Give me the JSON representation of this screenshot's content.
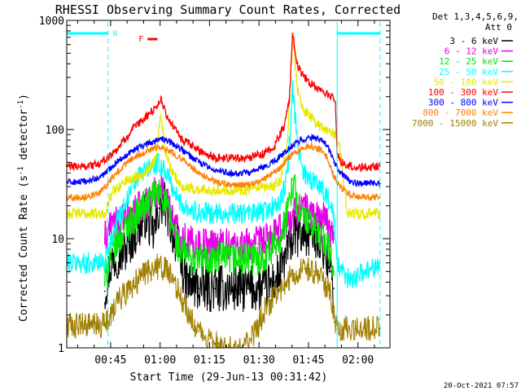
{
  "chart_data": {
    "type": "line",
    "title": "RHESSI Observing Summary Count Rates, Corrected",
    "xlabel": "Start Time (29-Jun-13 00:31:42)",
    "ylabel_main": "Corrected Count Rate (s",
    "ylabel_exp1": "-1",
    "ylabel_mid": " detector",
    "ylabel_exp2": "-1",
    "ylabel_end": ")",
    "y_scale": "log",
    "ylim": [
      1,
      1000
    ],
    "xlim_minutes": [
      0,
      98
    ],
    "x_ticks": [
      {
        "minute": 13.3,
        "label": "00:45"
      },
      {
        "minute": 28.3,
        "label": "01:00"
      },
      {
        "minute": 43.3,
        "label": "01:15"
      },
      {
        "minute": 58.3,
        "label": "01:30"
      },
      {
        "minute": 73.3,
        "label": "01:45"
      },
      {
        "minute": 88.3,
        "label": "02:00"
      }
    ],
    "y_ticks": [
      {
        "value": 1,
        "label": "1"
      },
      {
        "value": 10,
        "label": "10"
      },
      {
        "value": 100,
        "label": "100"
      },
      {
        "value": 1000,
        "label": "1000"
      }
    ],
    "legend_header": [
      "Det 1,3,4,5,6,9,",
      "Att 0"
    ],
    "series": [
      {
        "name": "3 - 6 keV",
        "color": "#000000",
        "x": [
          11.5,
          13,
          15,
          18,
          20,
          22,
          24,
          26,
          27,
          28,
          29,
          30,
          32,
          34,
          36,
          40,
          45,
          50,
          55,
          60,
          63,
          65,
          67,
          69,
          70,
          72,
          74,
          76,
          78,
          80,
          81
        ],
        "y": [
          3.3,
          5.5,
          7,
          8,
          10.5,
          13,
          17,
          11,
          13,
          19,
          21,
          20,
          12,
          8,
          4,
          3.5,
          3.5,
          3.5,
          3.5,
          3.5,
          4,
          5,
          8,
          11,
          11,
          11,
          11,
          11,
          8,
          5,
          3.5
        ]
      },
      {
        "name": "6 - 12 keV",
        "color": "#e800e8",
        "x": [
          11.5,
          13,
          16,
          19,
          22,
          25,
          27,
          28.5,
          30,
          32,
          34,
          38,
          45,
          52,
          58,
          62,
          65,
          67,
          69,
          71,
          73,
          75,
          77,
          79,
          80,
          81
        ],
        "y": [
          10,
          13,
          14,
          16,
          19,
          22,
          27,
          30,
          24,
          16,
          11,
          9,
          9,
          9,
          9,
          10,
          12,
          14,
          17,
          20,
          18,
          17,
          16,
          14,
          11,
          10
        ]
      },
      {
        "name": "12 - 25 keV",
        "color": "#00e800",
        "x": [
          11.5,
          13,
          16,
          19,
          22,
          25,
          27,
          28.5,
          30,
          32,
          34,
          38,
          45,
          52,
          58,
          62,
          65,
          67,
          68.5,
          70,
          72,
          74,
          76,
          78,
          80,
          81
        ],
        "y": [
          4,
          7,
          10,
          14,
          18,
          22,
          25,
          27,
          21,
          13,
          8,
          6.5,
          6.5,
          6.5,
          6.5,
          8,
          11,
          17,
          35,
          20,
          15,
          13,
          12,
          10,
          7,
          5
        ]
      },
      {
        "name": "25 - 50 keV",
        "color": "#00ffff",
        "x": [
          0,
          5,
          10,
          11.5,
          13,
          15,
          18,
          20,
          22,
          25,
          28,
          30,
          32,
          34,
          38,
          43,
          48,
          53,
          58,
          62,
          65,
          67,
          68.5,
          70,
          72,
          74,
          77,
          79,
          80,
          81,
          82,
          83,
          85,
          88,
          90,
          93,
          95
        ],
        "y": [
          6,
          6,
          6,
          6,
          9,
          14,
          22,
          30,
          38,
          45,
          48,
          42,
          30,
          22,
          18,
          17,
          17,
          17,
          17,
          19,
          22,
          40,
          240,
          70,
          40,
          35,
          30,
          25,
          20,
          15,
          6,
          5,
          4.3,
          4.5,
          5,
          5.5,
          6
        ]
      },
      {
        "name": "50 - 100 keV",
        "color": "#e8e800",
        "x": [
          0,
          5,
          10,
          11.5,
          14,
          18,
          22,
          25,
          27,
          28.5,
          30,
          32,
          35,
          40,
          45,
          50,
          55,
          60,
          63,
          65,
          67,
          68.5,
          70,
          72,
          75,
          78,
          80,
          81,
          82,
          83,
          85,
          86,
          88,
          90,
          93,
          95
        ],
        "y": [
          17,
          17,
          17,
          17,
          27,
          34,
          38,
          44,
          55,
          140,
          60,
          40,
          30,
          28,
          28,
          28,
          28,
          29,
          30,
          35,
          80,
          780,
          220,
          150,
          120,
          100,
          95,
          90,
          85,
          60,
          17,
          17,
          17,
          17,
          17,
          17
        ]
      },
      {
        "name": "100 - 300 keV",
        "color": "#ff0000",
        "x": [
          0,
          5,
          10,
          15,
          20,
          24,
          27,
          28.5,
          30,
          32,
          35,
          40,
          45,
          50,
          55,
          60,
          63,
          66,
          67.5,
          68.5,
          70,
          72,
          75,
          78,
          80,
          81,
          81.5,
          82,
          83,
          85,
          88,
          90,
          92,
          95
        ],
        "y": [
          46,
          46,
          48,
          65,
          100,
          130,
          160,
          190,
          140,
          110,
          80,
          65,
          55,
          55,
          55,
          60,
          70,
          110,
          190,
          750,
          380,
          300,
          250,
          220,
          200,
          190,
          175,
          60,
          50,
          47,
          45,
          45,
          45,
          46
        ]
      },
      {
        "name": "300 - 800 keV",
        "color": "#0000ff",
        "x": [
          0,
          5,
          10,
          15,
          20,
          25,
          28,
          31,
          35,
          40,
          45,
          50,
          55,
          60,
          65,
          68,
          71,
          74,
          77,
          79,
          80,
          81,
          82,
          84,
          86,
          88,
          90,
          92,
          95
        ],
        "y": [
          33,
          33,
          36,
          50,
          65,
          75,
          82,
          78,
          65,
          50,
          42,
          40,
          40,
          45,
          57,
          70,
          80,
          85,
          80,
          70,
          60,
          50,
          45,
          38,
          33,
          32,
          32,
          32,
          32
        ]
      },
      {
        "name": "800 - 7000 keV",
        "color": "#ff8000",
        "x": [
          0,
          5,
          10,
          15,
          20,
          25,
          28,
          31,
          35,
          40,
          45,
          50,
          55,
          60,
          65,
          68,
          71,
          74,
          77,
          79,
          80,
          81,
          82,
          84,
          86,
          88,
          90,
          92,
          95
        ],
        "y": [
          24,
          24,
          26,
          40,
          55,
          65,
          70,
          65,
          53,
          40,
          33,
          31,
          31,
          35,
          45,
          58,
          66,
          70,
          66,
          55,
          45,
          38,
          32,
          28,
          25,
          24,
          24,
          24,
          24
        ]
      },
      {
        "name": "7000 - 15000 keV",
        "color": "#a08000",
        "x": [
          0,
          5,
          10,
          11.5,
          13,
          16,
          19,
          22,
          25,
          27,
          30,
          32,
          34,
          36,
          38,
          40,
          43,
          46,
          50,
          53,
          56,
          58,
          60,
          63,
          66,
          69,
          72,
          75,
          78,
          80,
          81,
          82,
          85,
          90,
          95
        ],
        "y": [
          1.6,
          1.6,
          1.6,
          1.6,
          2,
          2.8,
          3.5,
          4.3,
          5.2,
          5.6,
          5.2,
          4.3,
          3.2,
          2.4,
          1.8,
          1.4,
          1.2,
          1.1,
          1.0,
          1.0,
          1.2,
          1.6,
          2.2,
          3,
          3.8,
          4.8,
          5.3,
          5,
          4,
          3,
          2,
          1.5,
          1.5,
          1.5,
          1.5
        ]
      }
    ],
    "annotations": {
      "night_bar_left": [
        0,
        12.5
      ],
      "night_bar_right": [
        82,
        95
      ],
      "N_label": "N",
      "flare_label": "F",
      "flare_bar": [
        24.5,
        27.5
      ],
      "footer_stamp": "20-Oct-2021 07:57"
    }
  }
}
